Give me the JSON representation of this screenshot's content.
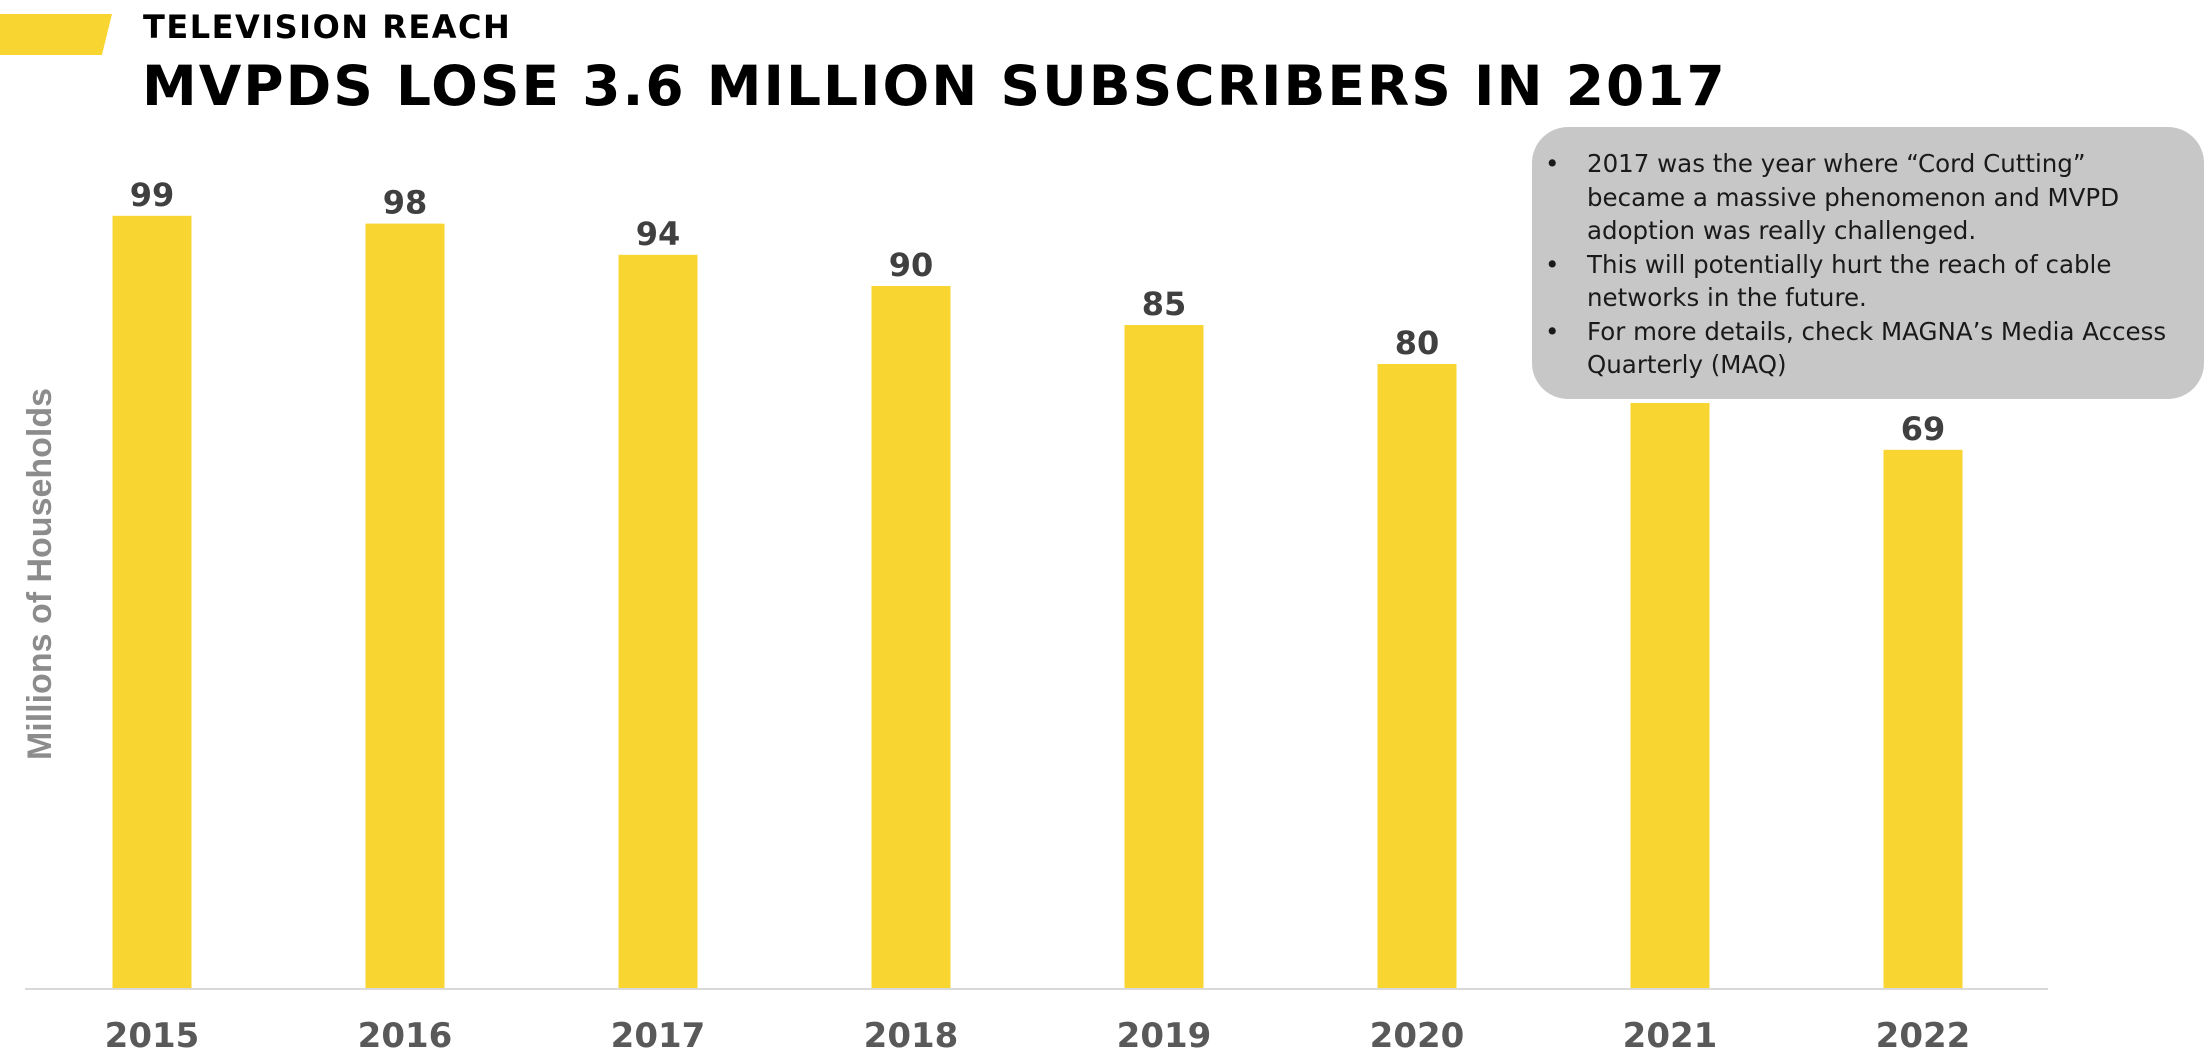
{
  "header": {
    "eyebrow": "TELEVISION REACH",
    "headline": "MVPDS LOSE 3.6 MILLION SUBSCRIBERS IN 2017"
  },
  "callout": {
    "bullets": [
      "2017 was the year where “Cord Cutting” became a massive phenomenon and MVPD adoption was really challenged.",
      "This will potentially hurt the reach of cable networks in the future.",
      "For more details, check MAGNA’s Media Access Quarterly (MAQ)"
    ]
  },
  "colors": {
    "accent": "#F9D531",
    "bar": "#F9D531",
    "axis_label": "#8C8C8C",
    "tick_label": "#595959",
    "value_label": "#404040",
    "callout_bg": "#C7C7C7"
  },
  "chart_data": {
    "type": "bar",
    "categories": [
      "2015",
      "2016",
      "2017",
      "2018",
      "2019",
      "2020",
      "2021",
      "2022"
    ],
    "values": [
      99,
      98,
      94,
      90,
      85,
      80,
      75,
      69
    ],
    "title": "MVPDS LOSE 3.6 MILLION SUBSCRIBERS IN 2017",
    "xlabel": "",
    "ylabel": "Millions of Households",
    "data_labels": true,
    "grid": false,
    "legend": "none"
  }
}
